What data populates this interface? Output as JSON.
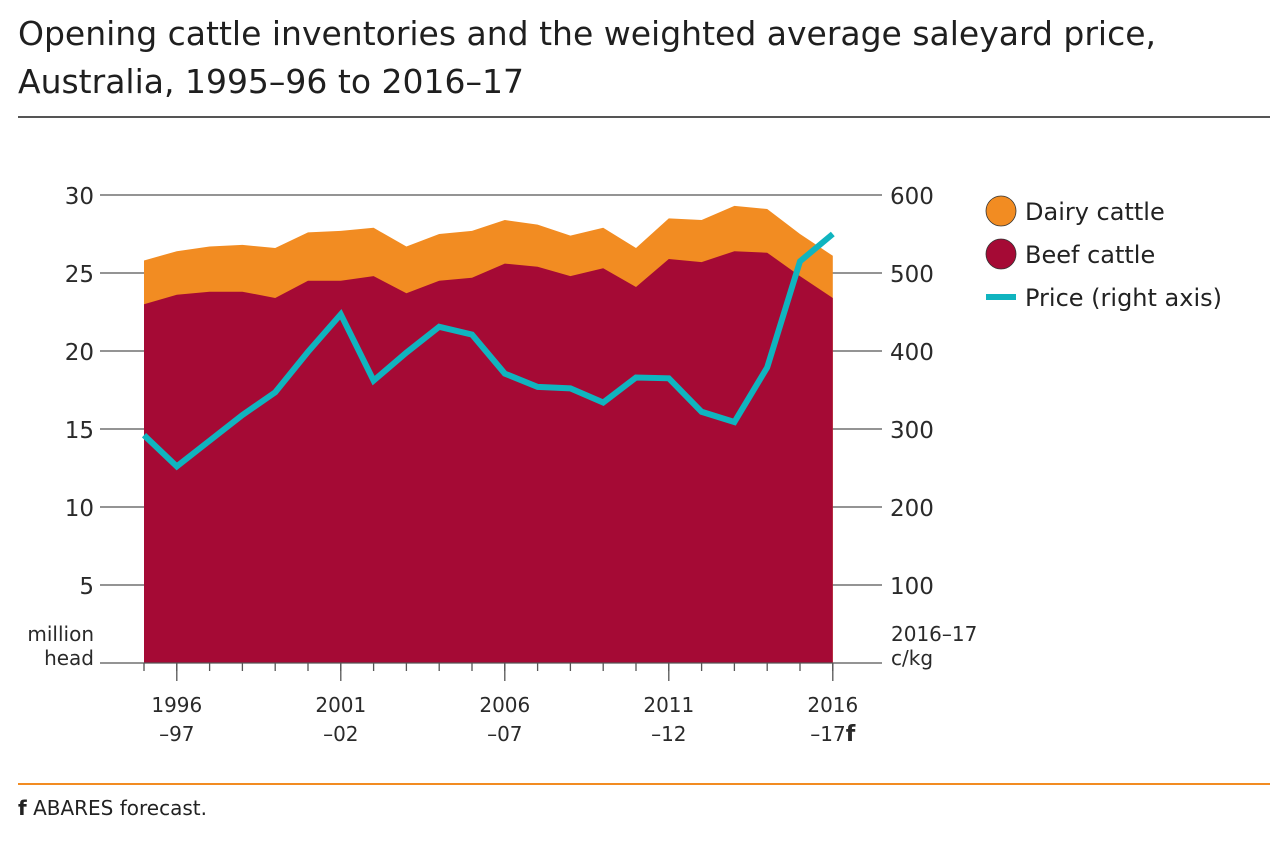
{
  "title": "Opening cattle inventories and the weighted average saleyard price, Australia, 1995–96 to 2016–17",
  "footnote": {
    "marker": "f",
    "text": "ABARES forecast."
  },
  "colors": {
    "dairy": "#f28c22",
    "beef": "#a50a35",
    "price": "#10b4bf"
  },
  "chart_data": {
    "type": "area",
    "x": [
      "1995–96",
      "1996–97",
      "1997–98",
      "1998–99",
      "1999–00",
      "2000–01",
      "2001–02",
      "2002–03",
      "2003–04",
      "2004–05",
      "2005–06",
      "2006–07",
      "2007–08",
      "2008–09",
      "2009–10",
      "2010–11",
      "2011–12",
      "2012–13",
      "2013–14",
      "2014–15",
      "2015–16",
      "2016–17f"
    ],
    "x_tick_labels": [
      {
        "index": 1,
        "line1": "1996",
        "line2": "–97"
      },
      {
        "index": 6,
        "line1": "2001",
        "line2": "–02"
      },
      {
        "index": 11,
        "line1": "2006",
        "line2": "–07"
      },
      {
        "index": 16,
        "line1": "2011",
        "line2": "–12"
      },
      {
        "index": 21,
        "line1": "2016",
        "line2": "–17",
        "suffix": "f"
      }
    ],
    "series": [
      {
        "name": "Beef cattle",
        "axis": "left",
        "values": [
          23.0,
          23.6,
          23.8,
          23.8,
          23.4,
          24.5,
          24.5,
          24.8,
          23.7,
          24.5,
          24.7,
          25.6,
          25.4,
          24.8,
          25.3,
          24.1,
          25.9,
          25.7,
          26.4,
          26.3,
          24.8,
          23.4
        ]
      },
      {
        "name": "Dairy cattle",
        "axis": "left",
        "values": [
          2.8,
          2.8,
          2.9,
          3.0,
          3.2,
          3.1,
          3.2,
          3.1,
          3.0,
          3.0,
          3.0,
          2.8,
          2.7,
          2.6,
          2.6,
          2.5,
          2.6,
          2.7,
          2.9,
          2.8,
          2.7,
          2.7
        ]
      },
      {
        "name": "Price (right axis)",
        "axis": "right",
        "values": [
          292,
          252,
          285,
          318,
          347,
          399,
          447,
          362,
          398,
          431,
          421,
          371,
          354,
          352,
          334,
          366,
          365,
          322,
          309,
          379,
          515,
          550
        ]
      }
    ],
    "y_left": {
      "ticks": [
        5,
        10,
        15,
        20,
        25,
        30
      ],
      "min": 0,
      "max": 30,
      "label": [
        "million",
        "head"
      ]
    },
    "y_right": {
      "ticks": [
        100,
        200,
        300,
        400,
        500,
        600
      ],
      "min": 0,
      "max": 600,
      "label": [
        "2016–17",
        "c/kg"
      ]
    },
    "legend": [
      {
        "name": "Dairy cattle",
        "shape": "circle",
        "color": "#f28c22"
      },
      {
        "name": "Beef cattle",
        "shape": "circle",
        "color": "#a50a35"
      },
      {
        "name": "Price (right axis)",
        "shape": "line",
        "color": "#10b4bf"
      }
    ],
    "legend_position": "right",
    "grid": true
  }
}
